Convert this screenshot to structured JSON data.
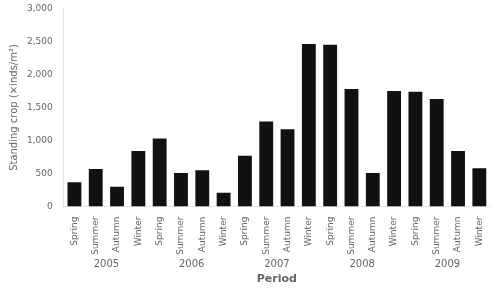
{
  "chart_data": {
    "type": "bar",
    "categories": [
      "Spring",
      "Summer",
      "Autumn",
      "Winter",
      "Spring",
      "Summer",
      "Autumn",
      "Winter",
      "Spring",
      "Summer",
      "Autumn",
      "Winter",
      "Spring",
      "Summer",
      "Autumn",
      "Winter",
      "Spring",
      "Summer",
      "Autumn",
      "Winter"
    ],
    "values": [
      370,
      570,
      300,
      840,
      1030,
      510,
      550,
      210,
      770,
      1290,
      1170,
      2460,
      2450,
      1780,
      510,
      1750,
      1740,
      1630,
      840,
      580
    ],
    "color": "#111111",
    "annotations": [
      "2005",
      "2006",
      "2007",
      "2008",
      "2009"
    ],
    "xlabel": "Period",
    "ylabel": "Standing crop (×inds/m²)",
    "ylim": [
      0,
      3000
    ],
    "yticks": [
      0,
      500,
      1000,
      1500,
      2000,
      2500,
      3000
    ],
    "grid": false
  }
}
